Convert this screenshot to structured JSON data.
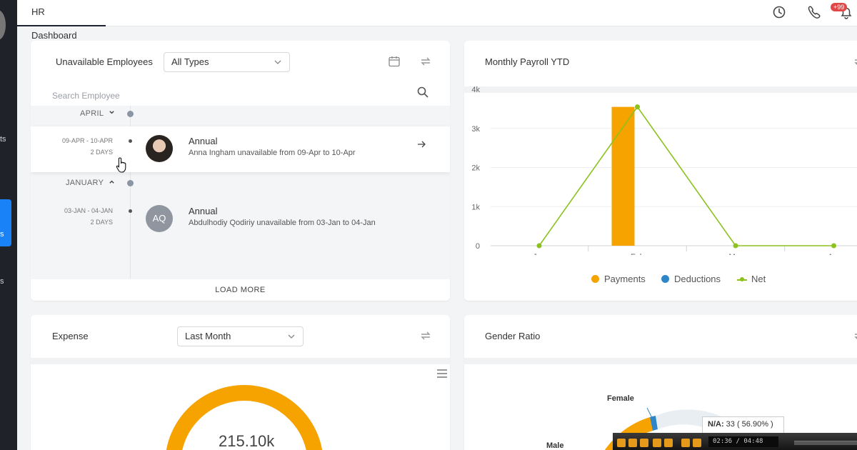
{
  "topbar": {
    "tab_label": "HR Dashboard",
    "notification_badge": "+99"
  },
  "leftnav": {
    "fragments": [
      "ts",
      "s",
      "s"
    ]
  },
  "unavailable": {
    "title": "Unavailable Employees",
    "type_filter": "All Types",
    "search_placeholder": "Search Employee",
    "groups": [
      {
        "month": "APRIL",
        "entries": [
          {
            "date_range": "09-APR - 10-APR",
            "days": "2 DAYS",
            "leave_type": "Annual",
            "description": "Anna Ingham unavailable from 09-Apr to 10-Apr"
          }
        ]
      },
      {
        "month": "JANUARY",
        "entries": [
          {
            "date_range": "03-JAN - 04-JAN",
            "days": "2 DAYS",
            "initials": "AQ",
            "leave_type": "Annual",
            "description": "Abdulhodiy Qodiriy unavailable from 03-Jan to 04-Jan"
          }
        ]
      }
    ],
    "load_more": "LOAD MORE"
  },
  "payroll": {
    "title": "Monthly Payroll YTD"
  },
  "chart_data": {
    "type": "bar",
    "title": "",
    "categories": [
      "Jan",
      "Feb",
      "Mar",
      "Apr"
    ],
    "y_ticks": [
      "0",
      "1k",
      "2k",
      "3k",
      "4k"
    ],
    "ylim": [
      0,
      4000
    ],
    "series": [
      {
        "name": "Payments",
        "type": "bar",
        "color": "#f6a300",
        "values": [
          0,
          3550,
          0,
          0
        ]
      },
      {
        "name": "Deductions",
        "type": "bar",
        "color": "#2e86c8",
        "values": [
          0,
          0,
          0,
          0
        ]
      },
      {
        "name": "Net",
        "type": "line",
        "color": "#8bc21d",
        "values": [
          0,
          3550,
          0,
          0
        ]
      }
    ],
    "legend": "bottom"
  },
  "expense": {
    "title": "Expense",
    "period_filter": "Last Month",
    "total": "215.10k"
  },
  "gender": {
    "title": "Gender Ratio",
    "labels": [
      "Female",
      "Male"
    ],
    "tooltip_label": "N/A:",
    "tooltip_value": "33 ( 56.90% )"
  },
  "video": {
    "time": "02:36 / 04:48"
  }
}
